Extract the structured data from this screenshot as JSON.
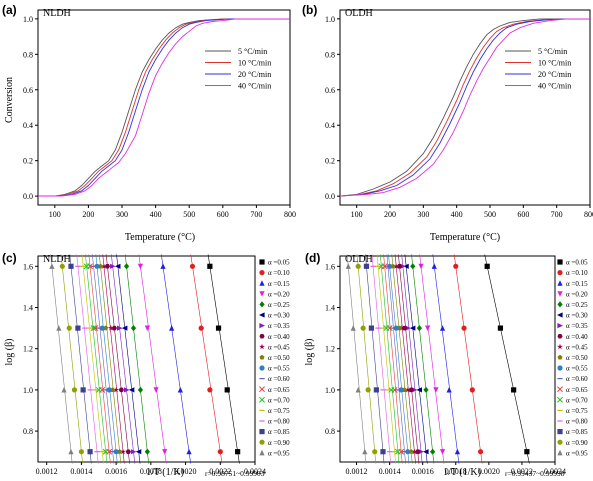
{
  "chart_data": [
    {
      "id": "a",
      "type": "line",
      "panel_letter": "(a)",
      "panel_name": "NLDH",
      "xlabel": "Temperature (°C)",
      "ylabel": "Conversion",
      "xlim": [
        50,
        800
      ],
      "ylim": [
        -0.05,
        1.05
      ],
      "xticks": [
        100,
        200,
        300,
        400,
        500,
        600,
        700,
        800
      ],
      "yticks": [
        0.0,
        0.2,
        0.4,
        0.6,
        0.8,
        1.0
      ],
      "ytick_labels": [
        "0.0",
        "0.2",
        "0.4",
        "0.6",
        "0.8",
        "1.0"
      ],
      "legend_position": "right",
      "series": [
        {
          "name": "5 °C/min",
          "color": "#555555",
          "x": [
            50,
            100,
            130,
            160,
            180,
            200,
            220,
            240,
            260,
            280,
            300,
            320,
            340,
            360,
            380,
            400,
            420,
            440,
            460,
            480,
            500,
            530,
            560,
            600,
            650,
            700,
            800
          ],
          "y": [
            0,
            0,
            0.01,
            0.03,
            0.06,
            0.1,
            0.14,
            0.17,
            0.2,
            0.26,
            0.36,
            0.48,
            0.6,
            0.7,
            0.77,
            0.83,
            0.88,
            0.92,
            0.95,
            0.97,
            0.98,
            0.99,
            0.995,
            1.0,
            1.0,
            1.0,
            1.0
          ]
        },
        {
          "name": "10 °C/min",
          "color": "#e03030",
          "x": [
            50,
            100,
            140,
            170,
            190,
            210,
            230,
            250,
            270,
            290,
            310,
            330,
            350,
            370,
            390,
            410,
            430,
            450,
            470,
            490,
            510,
            540,
            570,
            610,
            650,
            700,
            800
          ],
          "y": [
            0,
            0,
            0.01,
            0.03,
            0.06,
            0.1,
            0.14,
            0.17,
            0.2,
            0.26,
            0.36,
            0.48,
            0.6,
            0.7,
            0.77,
            0.83,
            0.88,
            0.92,
            0.95,
            0.97,
            0.98,
            0.99,
            0.995,
            1.0,
            1.0,
            1.0,
            1.0
          ]
        },
        {
          "name": "20 °C/min",
          "color": "#3030e0",
          "x": [
            50,
            110,
            150,
            180,
            200,
            220,
            240,
            260,
            280,
            300,
            320,
            340,
            360,
            380,
            400,
            420,
            440,
            460,
            480,
            500,
            520,
            550,
            580,
            620,
            660,
            710,
            800
          ],
          "y": [
            0,
            0,
            0.01,
            0.03,
            0.06,
            0.1,
            0.14,
            0.17,
            0.2,
            0.26,
            0.36,
            0.48,
            0.6,
            0.7,
            0.77,
            0.83,
            0.88,
            0.92,
            0.95,
            0.97,
            0.98,
            0.99,
            0.995,
            1.0,
            1.0,
            1.0,
            1.0
          ]
        },
        {
          "name": "40 °C/min",
          "color": "#e030e0",
          "x": [
            50,
            120,
            160,
            190,
            210,
            230,
            250,
            270,
            290,
            310,
            340,
            360,
            380,
            400,
            420,
            440,
            460,
            480,
            500,
            520,
            540,
            570,
            600,
            640,
            680,
            720,
            800
          ],
          "y": [
            0,
            0,
            0.01,
            0.03,
            0.06,
            0.1,
            0.13,
            0.16,
            0.19,
            0.24,
            0.34,
            0.46,
            0.58,
            0.68,
            0.75,
            0.81,
            0.86,
            0.9,
            0.93,
            0.96,
            0.975,
            0.985,
            0.99,
            1.0,
            1.0,
            1.0,
            1.0
          ]
        }
      ]
    },
    {
      "id": "b",
      "type": "line",
      "panel_letter": "(b)",
      "panel_name": "OLDH",
      "xlabel": "Temperature (°C)",
      "ylabel": "",
      "xlim": [
        50,
        800
      ],
      "ylim": [
        -0.05,
        1.05
      ],
      "xticks": [
        100,
        200,
        300,
        400,
        500,
        600,
        700,
        800
      ],
      "yticks": [
        0.0,
        0.2,
        0.4,
        0.6,
        0.8,
        1.0
      ],
      "ytick_labels": [
        "0.0",
        "0.2",
        "0.4",
        "0.6",
        "0.8",
        "1.0"
      ],
      "legend_position": "right",
      "series": [
        {
          "name": "5 °C/min",
          "color": "#555555",
          "x": [
            50,
            100,
            150,
            200,
            250,
            300,
            330,
            360,
            390,
            410,
            430,
            450,
            470,
            490,
            510,
            530,
            560,
            600,
            650,
            700,
            800
          ],
          "y": [
            0,
            0.01,
            0.04,
            0.08,
            0.14,
            0.24,
            0.33,
            0.44,
            0.56,
            0.65,
            0.73,
            0.8,
            0.86,
            0.91,
            0.94,
            0.96,
            0.98,
            0.99,
            1.0,
            1.0,
            1.0
          ]
        },
        {
          "name": "10 °C/min",
          "color": "#e03030",
          "x": [
            50,
            110,
            160,
            210,
            260,
            310,
            340,
            370,
            400,
            420,
            440,
            460,
            480,
            500,
            520,
            540,
            570,
            610,
            660,
            710,
            800
          ],
          "y": [
            0,
            0.01,
            0.03,
            0.07,
            0.13,
            0.22,
            0.31,
            0.42,
            0.54,
            0.63,
            0.71,
            0.78,
            0.84,
            0.89,
            0.93,
            0.95,
            0.97,
            0.985,
            0.995,
            1.0,
            1.0
          ]
        },
        {
          "name": "20 °C/min",
          "color": "#3030e0",
          "x": [
            50,
            120,
            170,
            220,
            270,
            320,
            350,
            380,
            410,
            430,
            450,
            470,
            490,
            510,
            530,
            550,
            580,
            620,
            670,
            720,
            800
          ],
          "y": [
            0,
            0.01,
            0.03,
            0.06,
            0.12,
            0.21,
            0.3,
            0.41,
            0.53,
            0.62,
            0.7,
            0.77,
            0.83,
            0.88,
            0.92,
            0.95,
            0.97,
            0.985,
            0.995,
            1.0,
            1.0
          ]
        },
        {
          "name": "40 °C/min",
          "color": "#e030e0",
          "x": [
            50,
            130,
            180,
            230,
            280,
            330,
            360,
            390,
            420,
            440,
            460,
            480,
            500,
            520,
            540,
            560,
            590,
            630,
            680,
            730,
            800
          ],
          "y": [
            0,
            0.01,
            0.02,
            0.05,
            0.1,
            0.18,
            0.26,
            0.36,
            0.48,
            0.57,
            0.65,
            0.72,
            0.78,
            0.84,
            0.88,
            0.92,
            0.95,
            0.975,
            0.99,
            1.0,
            1.0
          ]
        }
      ]
    },
    {
      "id": "c",
      "type": "scatter",
      "panel_letter": "(c)",
      "panel_name": "NLDH",
      "xlabel": "1/T (1/K)",
      "ylabel": "log (β)",
      "xlim": [
        0.00115,
        0.0024
      ],
      "ylim": [
        0.65,
        1.65
      ],
      "xticks": [
        0.0012,
        0.0014,
        0.0016,
        0.0018,
        0.002,
        0.0022,
        0.0024
      ],
      "xtick_labels": [
        "0.0012",
        "0.0014",
        "0.0016",
        "0.0018",
        "0.0020",
        "0.0022",
        "0.0024"
      ],
      "yticks": [
        0.8,
        1.0,
        1.2,
        1.4,
        1.6
      ],
      "ytick_labels": [
        "0.8",
        "1.0",
        "1.2",
        "1.4",
        "1.6"
      ],
      "legend_position": "right",
      "note": "r=0.98751~0.99903",
      "y_levels": [
        0.7,
        1.0,
        1.3,
        1.6
      ],
      "series": [
        {
          "name": "α =0.05",
          "color": "#000000",
          "marker": "square",
          "x": [
            0.0023,
            0.00224,
            0.00219,
            0.00214
          ]
        },
        {
          "name": "α =0.10",
          "color": "#e02020",
          "marker": "circle",
          "x": [
            0.0022,
            0.00214,
            0.00209,
            0.00204
          ]
        },
        {
          "name": "α =0.15",
          "color": "#2020e0",
          "marker": "triangle-up",
          "x": [
            0.00202,
            0.00197,
            0.00192,
            0.00187
          ]
        },
        {
          "name": "α =0.20",
          "color": "#e020e0",
          "marker": "triangle-down",
          "x": [
            0.00188,
            0.00183,
            0.00178,
            0.00174
          ]
        },
        {
          "name": "α =0.25",
          "color": "#008000",
          "marker": "diamond",
          "x": [
            0.00178,
            0.00174,
            0.0017,
            0.00166
          ]
        },
        {
          "name": "α =0.30",
          "color": "#000080",
          "marker": "triangle-left",
          "x": [
            0.00173,
            0.00169,
            0.00165,
            0.00161
          ]
        },
        {
          "name": "α =0.35",
          "color": "#8020c0",
          "marker": "triangle-right",
          "x": [
            0.0017,
            0.00166,
            0.00162,
            0.00158
          ]
        },
        {
          "name": "α =0.40",
          "color": "#800040",
          "marker": "hexagon",
          "x": [
            0.00167,
            0.00163,
            0.00159,
            0.00155
          ]
        },
        {
          "name": "α =0.45",
          "color": "#a00050",
          "marker": "star",
          "x": [
            0.00164,
            0.0016,
            0.00157,
            0.00153
          ]
        },
        {
          "name": "α =0.50",
          "color": "#808000",
          "marker": "pentagon",
          "x": [
            0.00162,
            0.00158,
            0.00154,
            0.00151
          ]
        },
        {
          "name": "α =0.55",
          "color": "#3080c0",
          "marker": "circle",
          "x": [
            0.0016,
            0.00156,
            0.00152,
            0.00149
          ]
        },
        {
          "name": "α =0.60",
          "color": "#6060c0",
          "marker": "dash",
          "x": [
            0.00158,
            0.00154,
            0.0015,
            0.00147
          ]
        },
        {
          "name": "α =0.65",
          "color": "#e04040",
          "marker": "x",
          "x": [
            0.00156,
            0.00152,
            0.00148,
            0.00145
          ]
        },
        {
          "name": "α =0.70",
          "color": "#20c020",
          "marker": "x",
          "x": [
            0.00154,
            0.0015,
            0.00147,
            0.00143
          ]
        },
        {
          "name": "α =0.75",
          "color": "#c0c000",
          "marker": "dash",
          "x": [
            0.00152,
            0.00148,
            0.00145,
            0.00141
          ]
        },
        {
          "name": "α =0.80",
          "color": "#e060e0",
          "marker": "dash",
          "x": [
            0.00149,
            0.00145,
            0.00142,
            0.00138
          ]
        },
        {
          "name": "α =0.85",
          "color": "#404090",
          "marker": "square",
          "x": [
            0.00145,
            0.00141,
            0.00138,
            0.00134
          ]
        },
        {
          "name": "α =0.90",
          "color": "#90a000",
          "marker": "circle",
          "x": [
            0.0014,
            0.00136,
            0.00133,
            0.00129
          ]
        },
        {
          "name": "α =0.95",
          "color": "#808080",
          "marker": "triangle-up",
          "x": [
            0.00134,
            0.0013,
            0.00127,
            0.00123
          ]
        }
      ]
    },
    {
      "id": "d",
      "type": "scatter",
      "panel_letter": "(d)",
      "panel_name": "OLDH",
      "xlabel": "1/T (1/K)",
      "ylabel": "log (β)",
      "xlim": [
        0.0011,
        0.0024
      ],
      "ylim": [
        0.65,
        1.65
      ],
      "xticks": [
        0.0012,
        0.0014,
        0.0016,
        0.0018,
        0.002,
        0.0022,
        0.0024
      ],
      "xtick_labels": [
        "0.0012",
        "0.0014",
        "0.0016",
        "0.0018",
        "0.0020",
        "0.0022",
        "0.0024"
      ],
      "yticks": [
        0.8,
        1.0,
        1.2,
        1.4,
        1.6
      ],
      "ytick_labels": [
        "0.8",
        "1.0",
        "1.2",
        "1.4",
        "1.6"
      ],
      "legend_position": "right",
      "note": "r=0.99437~0.99998",
      "y_levels": [
        0.7,
        1.0,
        1.3,
        1.6
      ],
      "series": [
        {
          "name": "α =0.05",
          "color": "#000000",
          "marker": "square",
          "x": [
            0.00223,
            0.00215,
            0.00207,
            0.00199
          ]
        },
        {
          "name": "α =0.10",
          "color": "#e02020",
          "marker": "circle",
          "x": [
            0.00195,
            0.0019,
            0.00185,
            0.0018
          ]
        },
        {
          "name": "α =0.15",
          "color": "#2020e0",
          "marker": "triangle-up",
          "x": [
            0.00181,
            0.00176,
            0.00172,
            0.00167
          ]
        },
        {
          "name": "α =0.20",
          "color": "#e020e0",
          "marker": "triangle-down",
          "x": [
            0.00172,
            0.00168,
            0.00163,
            0.00159
          ]
        },
        {
          "name": "α =0.25",
          "color": "#008000",
          "marker": "diamond",
          "x": [
            0.00166,
            0.00162,
            0.00158,
            0.00154
          ]
        },
        {
          "name": "α =0.30",
          "color": "#000080",
          "marker": "triangle-left",
          "x": [
            0.00162,
            0.00158,
            0.00154,
            0.0015
          ]
        },
        {
          "name": "α =0.35",
          "color": "#8020c0",
          "marker": "triangle-right",
          "x": [
            0.00159,
            0.00155,
            0.00151,
            0.00148
          ]
        },
        {
          "name": "α =0.40",
          "color": "#800040",
          "marker": "hexagon",
          "x": [
            0.00157,
            0.00153,
            0.00149,
            0.00146
          ]
        },
        {
          "name": "α =0.45",
          "color": "#a00050",
          "marker": "star",
          "x": [
            0.00155,
            0.00151,
            0.00147,
            0.00144
          ]
        },
        {
          "name": "α =0.50",
          "color": "#808000",
          "marker": "pentagon",
          "x": [
            0.00153,
            0.00149,
            0.00146,
            0.00142
          ]
        },
        {
          "name": "α =0.55",
          "color": "#3080c0",
          "marker": "circle",
          "x": [
            0.00151,
            0.00147,
            0.00144,
            0.0014
          ]
        },
        {
          "name": "α =0.60",
          "color": "#6060c0",
          "marker": "dash",
          "x": [
            0.00149,
            0.00145,
            0.00142,
            0.00139
          ]
        },
        {
          "name": "α =0.65",
          "color": "#e04040",
          "marker": "x",
          "x": [
            0.00147,
            0.00143,
            0.0014,
            0.00137
          ]
        },
        {
          "name": "α =0.70",
          "color": "#20c020",
          "marker": "x",
          "x": [
            0.00145,
            0.00141,
            0.00138,
            0.00135
          ]
        },
        {
          "name": "α =0.75",
          "color": "#c0c000",
          "marker": "dash",
          "x": [
            0.00143,
            0.00139,
            0.00136,
            0.00133
          ]
        },
        {
          "name": "α =0.80",
          "color": "#e060e0",
          "marker": "dash",
          "x": [
            0.0014,
            0.00136,
            0.00133,
            0.0013
          ]
        },
        {
          "name": "α =0.85",
          "color": "#404090",
          "marker": "square",
          "x": [
            0.00136,
            0.00132,
            0.00129,
            0.00126
          ]
        },
        {
          "name": "α =0.90",
          "color": "#90a000",
          "marker": "circle",
          "x": [
            0.00131,
            0.00127,
            0.00124,
            0.00121
          ]
        },
        {
          "name": "α =0.95",
          "color": "#808080",
          "marker": "triangle-up",
          "x": [
            0.00125,
            0.00121,
            0.00118,
            0.00115
          ]
        }
      ]
    }
  ]
}
